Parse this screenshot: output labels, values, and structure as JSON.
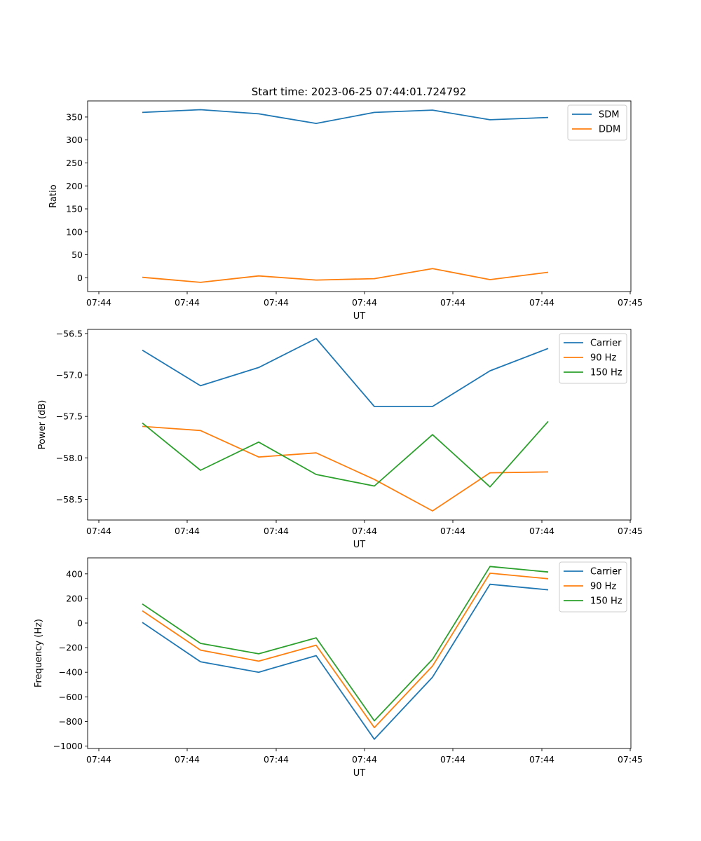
{
  "figure": {
    "title": "Start time: 2023-06-25 07:44:01.724792"
  },
  "chart_data": [
    {
      "type": "line",
      "xlabel": "UT",
      "ylabel": "Ratio",
      "x_tick_labels": [
        "07:44",
        "07:44",
        "07:44",
        "07:44",
        "07:44",
        "07:44",
        "07:44"
      ],
      "x_tick_last_label": "07:45",
      "ylim": [
        -30,
        385
      ],
      "yticks": [
        0,
        50,
        100,
        150,
        200,
        250,
        300,
        350
      ],
      "legend_position": "upper-right",
      "series": [
        {
          "name": "SDM",
          "color": "#1f77b4",
          "values": [
            360,
            366,
            357,
            336,
            360,
            365,
            344,
            349
          ]
        },
        {
          "name": "DDM",
          "color": "#ff7f0e",
          "values": [
            1,
            -10,
            4,
            -5,
            -2,
            20,
            -4,
            12
          ]
        }
      ]
    },
    {
      "type": "line",
      "xlabel": "UT",
      "ylabel": "Power (dB)",
      "x_tick_labels": [
        "07:44",
        "07:44",
        "07:44",
        "07:44",
        "07:44",
        "07:44",
        "07:44"
      ],
      "x_tick_last_label": "07:45",
      "ylim": [
        -58.75,
        -56.45
      ],
      "yticks": [
        -58.5,
        -58.0,
        -57.5,
        -57.0,
        -56.5
      ],
      "legend_position": "upper-right",
      "series": [
        {
          "name": "Carrier",
          "color": "#1f77b4",
          "values": [
            -56.7,
            -57.13,
            -56.91,
            -56.56,
            -57.38,
            -57.38,
            -56.95,
            -56.68
          ]
        },
        {
          "name": "90 Hz",
          "color": "#ff7f0e",
          "values": [
            -57.62,
            -57.67,
            -57.99,
            -57.94,
            -58.26,
            -58.64,
            -58.18,
            -58.17
          ]
        },
        {
          "name": "150 Hz",
          "color": "#2ca02c",
          "values": [
            -57.58,
            -58.15,
            -57.81,
            -58.2,
            -58.34,
            -57.72,
            -58.35,
            -57.56
          ]
        }
      ]
    },
    {
      "type": "line",
      "xlabel": "UT",
      "ylabel": "Frequency (Hz)",
      "x_tick_labels": [
        "07:44",
        "07:44",
        "07:44",
        "07:44",
        "07:44",
        "07:44",
        "07:44"
      ],
      "x_tick_last_label": "07:45",
      "ylim": [
        -1020,
        530
      ],
      "yticks": [
        -1000,
        -800,
        -600,
        -400,
        -200,
        0,
        200,
        400
      ],
      "legend_position": "upper-right",
      "series": [
        {
          "name": "Carrier",
          "color": "#1f77b4",
          "values": [
            5,
            -315,
            -400,
            -265,
            -945,
            -440,
            315,
            270
          ]
        },
        {
          "name": "90 Hz",
          "color": "#ff7f0e",
          "values": [
            100,
            -220,
            -310,
            -180,
            -850,
            -350,
            405,
            360
          ]
        },
        {
          "name": "150 Hz",
          "color": "#2ca02c",
          "values": [
            155,
            -165,
            -250,
            -120,
            -795,
            -295,
            460,
            415
          ]
        }
      ]
    }
  ]
}
